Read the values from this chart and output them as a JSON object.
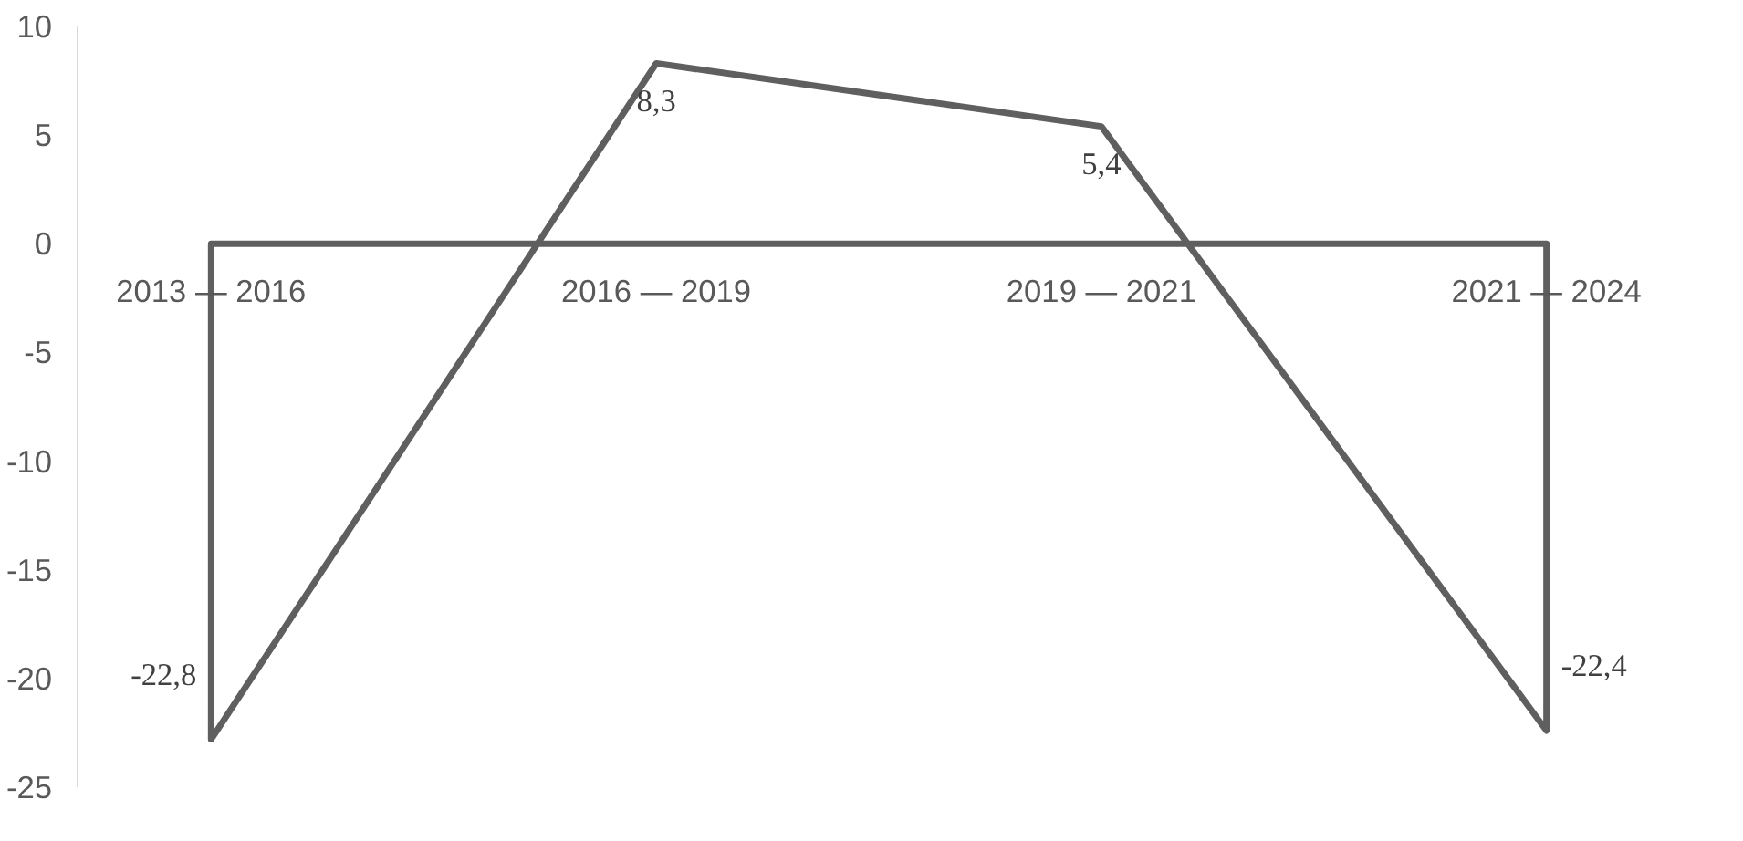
{
  "chart_data": {
    "type": "area",
    "categories": [
      "2013 — 2016",
      "2016 — 2019",
      "2019 — 2021",
      "2021 — 2024"
    ],
    "values": [
      -22.8,
      8.3,
      5.4,
      -22.4
    ],
    "value_labels": [
      "-22,8",
      "8,3",
      "5,4",
      "-22,4"
    ],
    "color": "#5f5f5f",
    "ylim": [
      -25,
      10
    ],
    "yticks": [
      -25,
      -20,
      -15,
      -10,
      -5,
      0,
      5,
      10
    ],
    "grid": false
  }
}
